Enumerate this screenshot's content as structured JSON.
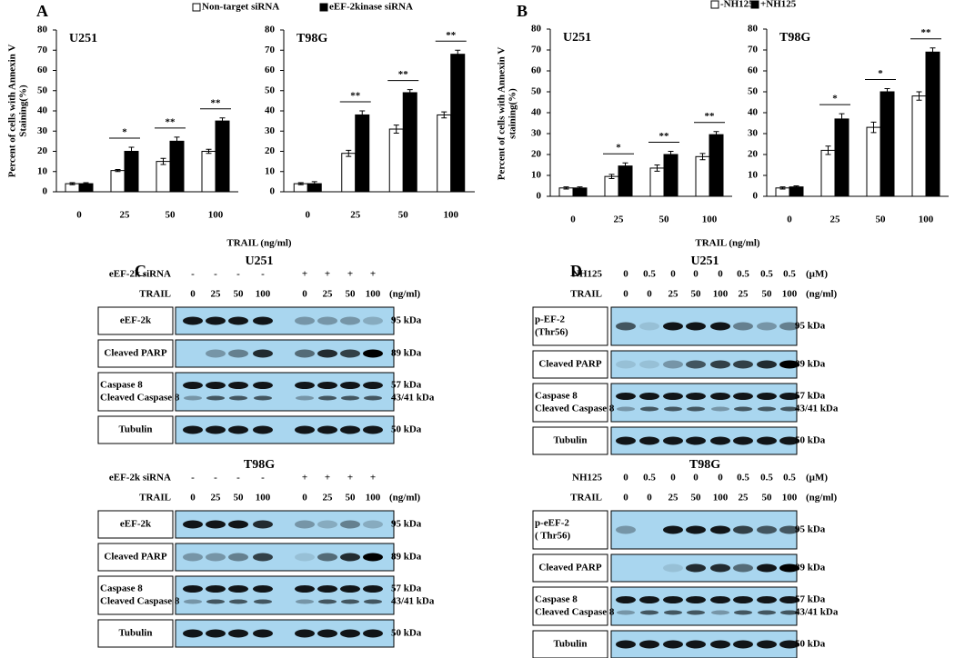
{
  "chart_data": [
    {
      "type": "bar",
      "panel": "A",
      "ylabel": [
        "Percent of cells with Annexin V",
        "Staining(%)"
      ],
      "xlabel": "TRAIL (ng/ml)",
      "categories": [
        "0",
        "25",
        "50",
        "100"
      ],
      "ylim": [
        0,
        80
      ],
      "yticks": [
        0,
        10,
        20,
        30,
        40,
        50,
        60,
        70,
        80
      ],
      "series": [
        {
          "name": "Non-target siRNA",
          "color": "#ffffff"
        },
        {
          "name": "eEF-2kinase siRNA",
          "color": "#000000"
        }
      ],
      "charts": [
        {
          "title": "U251",
          "values": [
            [
              4,
              10.5,
              15,
              20
            ],
            [
              4,
              20,
              25,
              35
            ]
          ],
          "errors": [
            [
              0.5,
              0.5,
              1.5,
              1
            ],
            [
              0.5,
              2,
              2,
              1.5
            ]
          ],
          "significance": [
            null,
            "*",
            "**",
            "**"
          ]
        },
        {
          "title": "T98G",
          "values": [
            [
              4,
              19,
              31,
              38
            ],
            [
              4,
              38,
              49,
              68
            ]
          ],
          "errors": [
            [
              0.5,
              1.5,
              2,
              1.5
            ],
            [
              1,
              2,
              1.5,
              2
            ]
          ],
          "significance": [
            null,
            "**",
            "**",
            "**"
          ]
        }
      ]
    },
    {
      "type": "bar",
      "panel": "B",
      "ylabel": [
        "Percent of cells with Annexin V",
        "staining(%)"
      ],
      "xlabel": "TRAIL (ng/ml)",
      "categories": [
        "0",
        "25",
        "50",
        "100"
      ],
      "ylim": [
        0,
        80
      ],
      "yticks": [
        0,
        10,
        20,
        30,
        40,
        50,
        60,
        70,
        80
      ],
      "series": [
        {
          "name": "-NH125",
          "color": "#ffffff"
        },
        {
          "name": "+NH125",
          "color": "#000000"
        }
      ],
      "charts": [
        {
          "title": "U251",
          "values": [
            [
              4,
              9.5,
              13.5,
              19
            ],
            [
              4,
              14.5,
              20,
              29.5
            ]
          ],
          "errors": [
            [
              0.5,
              1,
              1.5,
              1.5
            ],
            [
              0.5,
              1.5,
              1.5,
              1.5
            ]
          ],
          "significance": [
            null,
            "*",
            "**",
            "**"
          ]
        },
        {
          "title": "T98G",
          "values": [
            [
              4,
              22,
              33,
              48
            ],
            [
              4.5,
              37,
              50,
              69
            ]
          ],
          "errors": [
            [
              0.5,
              2,
              2.5,
              2
            ],
            [
              0.5,
              2.5,
              1.5,
              2
            ]
          ],
          "significance": [
            null,
            "*",
            "*",
            "**"
          ]
        }
      ]
    }
  ],
  "blots": [
    {
      "panel": "C",
      "blocks": [
        {
          "title": "U251",
          "treatments": [
            {
              "label": "eEF-2k siRNA",
              "values": [
                "-",
                "-",
                "-",
                "-",
                "+",
                "+",
                "+",
                "+"
              ]
            },
            {
              "label": "TRAIL",
              "values": [
                "0",
                "25",
                "50",
                "100",
                "0",
                "25",
                "50",
                "100"
              ],
              "unit": "(ng/ml)"
            }
          ],
          "bands": [
            {
              "label": [
                "eEF-2k"
              ],
              "size": [
                "95 kDa"
              ]
            },
            {
              "label": [
                "Cleaved PARP"
              ],
              "size": [
                "89 kDa"
              ]
            },
            {
              "label": [
                "Caspase 8",
                "Cleaved Caspase 8"
              ],
              "size": [
                "57 kDa",
                "43/41 kDa"
              ]
            },
            {
              "label": [
                "Tubulin"
              ],
              "size": [
                "50 kDa"
              ]
            }
          ]
        },
        {
          "title": "T98G",
          "treatments": [
            {
              "label": "eEF-2k siRNA",
              "values": [
                "-",
                "-",
                "-",
                "-",
                "+",
                "+",
                "+",
                "+"
              ]
            },
            {
              "label": "TRAIL",
              "values": [
                "0",
                "25",
                "50",
                "100",
                "0",
                "25",
                "50",
                "100"
              ],
              "unit": "(ng/ml)"
            }
          ],
          "bands": [
            {
              "label": [
                "eEF-2k"
              ],
              "size": [
                "95 kDa"
              ]
            },
            {
              "label": [
                "Cleaved PARP"
              ],
              "size": [
                "89 kDa"
              ]
            },
            {
              "label": [
                "Caspase 8",
                "Cleaved Caspase 8"
              ],
              "size": [
                "57 kDa",
                "43/41 kDa"
              ]
            },
            {
              "label": [
                "Tubulin"
              ],
              "size": [
                "50 kDa"
              ]
            }
          ]
        }
      ]
    },
    {
      "panel": "D",
      "blocks": [
        {
          "title": "U251",
          "treatments": [
            {
              "label": "NH125",
              "values": [
                "0",
                "0.5",
                "0",
                "0",
                "0",
                "0.5",
                "0.5",
                "0.5"
              ],
              "unit": "(µM)"
            },
            {
              "label": "TRAIL",
              "values": [
                "0",
                "0",
                "25",
                "50",
                "100",
                "25",
                "50",
                "100"
              ],
              "unit": "(ng/ml)"
            }
          ],
          "bands": [
            {
              "label": [
                "p-EF-2",
                "(Thr56)"
              ],
              "size": [
                "95 kDa"
              ]
            },
            {
              "label": [
                "Cleaved PARP"
              ],
              "size": [
                "89 kDa"
              ]
            },
            {
              "label": [
                "Caspase 8",
                "Cleaved Caspase 8"
              ],
              "size": [
                "57 kDa",
                "43/41 kDa"
              ]
            },
            {
              "label": [
                "Tubulin"
              ],
              "size": [
                "50 kDa"
              ]
            }
          ]
        },
        {
          "title": "T98G",
          "treatments": [
            {
              "label": "NH125",
              "values": [
                "0",
                "0.5",
                "0",
                "0",
                "0",
                "0.5",
                "0.5",
                "0.5"
              ],
              "unit": "(µM)"
            },
            {
              "label": "TRAIL",
              "values": [
                "0",
                "0",
                "25",
                "50",
                "100",
                "25",
                "50",
                "100"
              ],
              "unit": "(ng/ml)"
            }
          ],
          "bands": [
            {
              "label": [
                "p-eEF-2",
                "( Thr56)"
              ],
              "size": [
                "95 kDa"
              ]
            },
            {
              "label": [
                "Cleaved PARP"
              ],
              "size": [
                "89 kDa"
              ]
            },
            {
              "label": [
                "Caspase 8",
                "Cleaved Caspase 8"
              ],
              "size": [
                "57 kDa",
                "43/41 kDa"
              ]
            },
            {
              "label": [
                "Tubulin"
              ],
              "size": [
                "50 kDa"
              ]
            }
          ]
        }
      ]
    }
  ]
}
